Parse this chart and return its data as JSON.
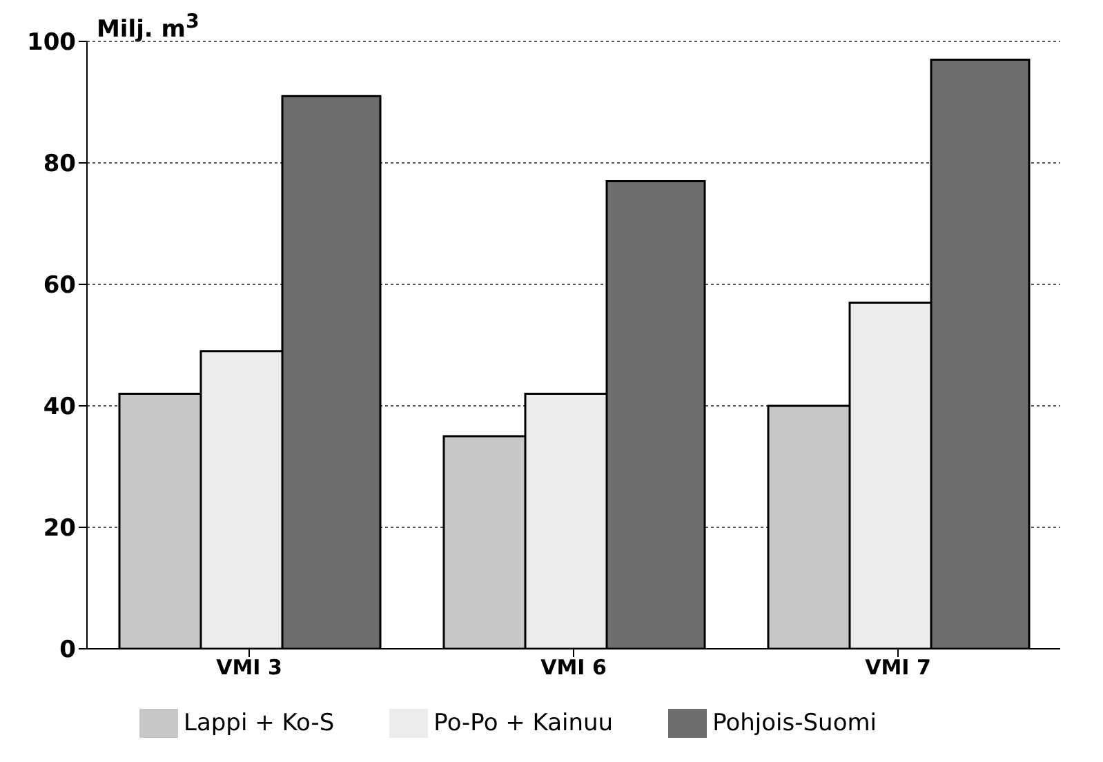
{
  "chart_data": {
    "type": "bar",
    "ylabel": "Milj. m$^{3}$",
    "categories": [
      "VMI 3",
      "VMI 6",
      "VMI 7"
    ],
    "series": [
      {
        "name": "Lappi + Ko-S",
        "color": "#c8c8c8",
        "values": [
          42,
          35,
          40
        ]
      },
      {
        "name": "Po-Po + Kainuu",
        "color": "#ececec",
        "values": [
          49,
          42,
          57
        ]
      },
      {
        "name": "Pohjois-Suomi",
        "color": "#6e6e6e",
        "values": [
          91,
          77,
          97
        ]
      }
    ],
    "ylim": [
      0,
      100
    ],
    "yticks": [
      0,
      20,
      40,
      60,
      80,
      100
    ],
    "grid": "y",
    "legend": "bottom"
  }
}
